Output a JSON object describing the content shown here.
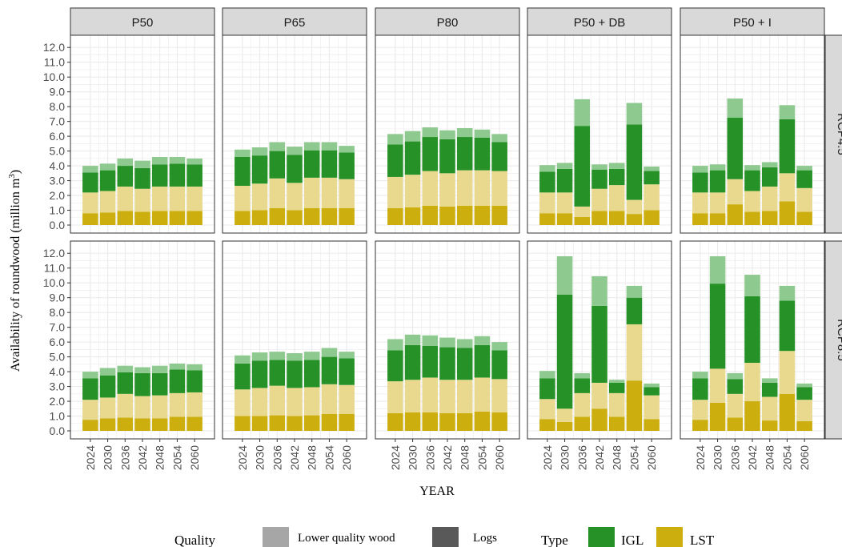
{
  "chart_data": {
    "type": "bar",
    "stacked": true,
    "ylabel": "Availability of roundwood (million m",
    "ylabel_superscript": "3",
    "ylabel_close": ")",
    "xlabel": "YEAR",
    "ylim": [
      0,
      12.5
    ],
    "yticks": [
      "0.0",
      "1.0",
      "2.0",
      "3.0",
      "4.0",
      "5.0",
      "6.0",
      "7.0",
      "8.0",
      "9.0",
      "10.0",
      "11.0",
      "12.0"
    ],
    "ytick_values": [
      0,
      1,
      2,
      3,
      4,
      5,
      6,
      7,
      8,
      9,
      10,
      11,
      12
    ],
    "categories": [
      "2024",
      "2030",
      "2036",
      "2042",
      "2048",
      "2054",
      "2060"
    ],
    "columns": [
      "P50",
      "P65",
      "P80",
      "P50 + DB",
      "P50 + I"
    ],
    "rows": [
      "RCP4.5",
      "RCP8.5"
    ],
    "grid": true,
    "legend_position": "bottom",
    "stack_order": [
      "LST Logs",
      "LST Lower quality wood",
      "IGL Logs",
      "IGL Lower quality wood"
    ],
    "colors": {
      "LST Logs": "#ccaf0e",
      "LST Lower quality wood": "#e8d98f",
      "IGL Logs": "#259127",
      "IGL Lower quality wood": "#8ec98f",
      "strip_bg": "#d9d9d9",
      "grid": "#ebebeb"
    },
    "panels": [
      {
        "row": "RCP4.5",
        "col": "P50",
        "lst_logs": [
          0.8,
          0.85,
          0.95,
          0.9,
          0.95,
          0.95,
          0.95
        ],
        "lst_lqw": [
          1.4,
          1.45,
          1.65,
          1.55,
          1.65,
          1.65,
          1.65
        ],
        "igl_logs": [
          1.35,
          1.4,
          1.4,
          1.4,
          1.5,
          1.55,
          1.5
        ],
        "igl_lqw": [
          0.45,
          0.45,
          0.5,
          0.5,
          0.5,
          0.45,
          0.4
        ]
      },
      {
        "row": "RCP4.5",
        "col": "P65",
        "lst_logs": [
          0.95,
          1.0,
          1.15,
          1.0,
          1.15,
          1.15,
          1.15
        ],
        "lst_lqw": [
          1.7,
          1.8,
          2.0,
          1.85,
          2.05,
          2.05,
          1.95
        ],
        "igl_logs": [
          1.95,
          1.9,
          1.85,
          1.9,
          1.85,
          1.85,
          1.8
        ],
        "igl_lqw": [
          0.5,
          0.55,
          0.6,
          0.55,
          0.55,
          0.55,
          0.45
        ]
      },
      {
        "row": "RCP4.5",
        "col": "P80",
        "lst_logs": [
          1.15,
          1.2,
          1.3,
          1.25,
          1.3,
          1.3,
          1.3
        ],
        "lst_lqw": [
          2.1,
          2.2,
          2.35,
          2.25,
          2.4,
          2.4,
          2.35
        ],
        "igl_logs": [
          2.2,
          2.25,
          2.3,
          2.3,
          2.25,
          2.2,
          1.95
        ],
        "igl_lqw": [
          0.7,
          0.7,
          0.65,
          0.6,
          0.6,
          0.55,
          0.55
        ]
      },
      {
        "row": "RCP4.5",
        "col": "P50 + DB",
        "lst_logs": [
          0.8,
          0.8,
          0.55,
          0.95,
          0.95,
          0.75,
          1.0
        ],
        "lst_lqw": [
          1.4,
          1.4,
          0.7,
          1.5,
          1.75,
          0.95,
          1.75
        ],
        "igl_logs": [
          1.4,
          1.6,
          5.45,
          1.3,
          1.1,
          5.1,
          0.9
        ],
        "igl_lqw": [
          0.45,
          0.4,
          1.8,
          0.35,
          0.4,
          1.45,
          0.3
        ]
      },
      {
        "row": "RCP4.5",
        "col": "P50 + I",
        "lst_logs": [
          0.8,
          0.8,
          1.4,
          0.9,
          0.95,
          1.6,
          0.9
        ],
        "lst_lqw": [
          1.4,
          1.4,
          1.7,
          1.4,
          1.65,
          1.9,
          1.6
        ],
        "igl_logs": [
          1.35,
          1.5,
          4.15,
          1.4,
          1.3,
          3.65,
          1.2
        ],
        "igl_lqw": [
          0.45,
          0.4,
          1.3,
          0.35,
          0.35,
          0.95,
          0.3
        ]
      },
      {
        "row": "RCP8.5",
        "col": "P50",
        "lst_logs": [
          0.75,
          0.85,
          0.9,
          0.85,
          0.85,
          0.95,
          0.95
        ],
        "lst_lqw": [
          1.35,
          1.4,
          1.6,
          1.5,
          1.55,
          1.6,
          1.65
        ],
        "igl_logs": [
          1.45,
          1.5,
          1.45,
          1.55,
          1.5,
          1.6,
          1.5
        ],
        "igl_lqw": [
          0.45,
          0.5,
          0.45,
          0.4,
          0.5,
          0.4,
          0.4
        ]
      },
      {
        "row": "RCP8.5",
        "col": "P65",
        "lst_logs": [
          1.0,
          1.0,
          1.05,
          1.0,
          1.05,
          1.15,
          1.15
        ],
        "lst_lqw": [
          1.8,
          1.9,
          2.0,
          1.9,
          1.9,
          2.0,
          1.95
        ],
        "igl_logs": [
          1.75,
          1.85,
          1.75,
          1.85,
          1.85,
          1.85,
          1.8
        ],
        "igl_lqw": [
          0.55,
          0.55,
          0.55,
          0.5,
          0.55,
          0.6,
          0.45
        ]
      },
      {
        "row": "RCP8.5",
        "col": "P80",
        "lst_logs": [
          1.2,
          1.25,
          1.25,
          1.2,
          1.2,
          1.3,
          1.25
        ],
        "lst_lqw": [
          2.15,
          2.2,
          2.35,
          2.25,
          2.25,
          2.3,
          2.25
        ],
        "igl_logs": [
          2.1,
          2.35,
          2.15,
          2.2,
          2.15,
          2.2,
          1.95
        ],
        "igl_lqw": [
          0.75,
          0.7,
          0.7,
          0.65,
          0.6,
          0.6,
          0.55
        ]
      },
      {
        "row": "RCP8.5",
        "col": "P50 + DB",
        "lst_logs": [
          0.8,
          0.6,
          0.95,
          1.5,
          0.95,
          3.4,
          0.8
        ],
        "lst_lqw": [
          1.35,
          0.9,
          1.6,
          1.75,
          1.6,
          3.8,
          1.6
        ],
        "igl_logs": [
          1.4,
          7.7,
          1.0,
          5.2,
          0.7,
          1.8,
          0.55
        ],
        "igl_lqw": [
          0.5,
          2.6,
          0.35,
          2.0,
          0.2,
          0.8,
          0.25
        ]
      },
      {
        "row": "RCP8.5",
        "col": "P50 + I",
        "lst_logs": [
          0.75,
          1.9,
          0.9,
          2.0,
          0.7,
          2.5,
          0.65
        ],
        "lst_lqw": [
          1.35,
          2.3,
          1.6,
          2.6,
          1.6,
          2.9,
          1.45
        ],
        "igl_logs": [
          1.45,
          5.75,
          1.0,
          4.5,
          0.95,
          3.4,
          0.85
        ],
        "igl_lqw": [
          0.45,
          1.85,
          0.4,
          1.45,
          0.3,
          1.0,
          0.25
        ]
      }
    ],
    "legend": {
      "quality_title": "Quality",
      "quality_items": [
        "Lower quality wood",
        "Logs"
      ],
      "quality_colors": [
        "#a6a6a6",
        "#595959"
      ],
      "type_title": "Type",
      "type_items": [
        "IGL",
        "LST"
      ],
      "type_colors": [
        "#259127",
        "#ccaf0e"
      ]
    }
  }
}
